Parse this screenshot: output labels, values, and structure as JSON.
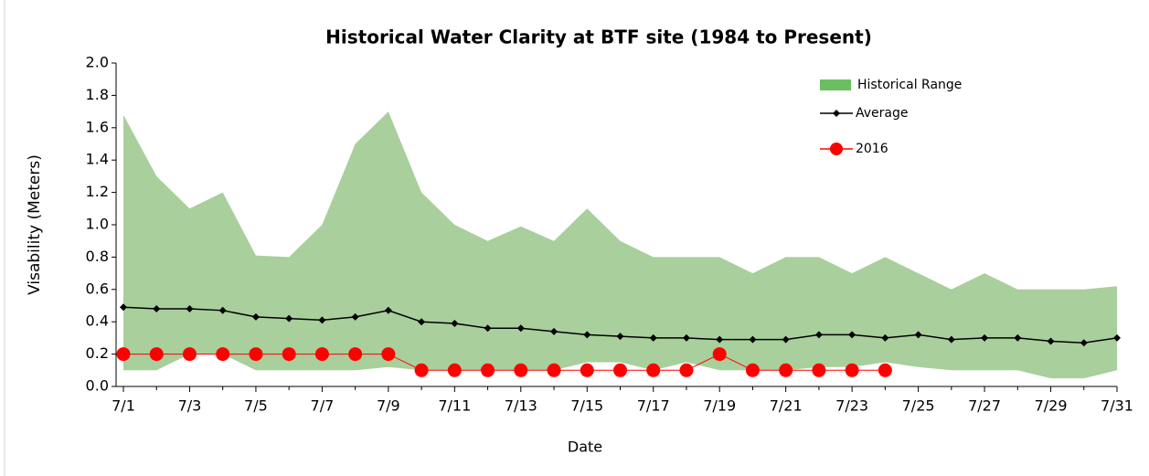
{
  "chart_data": {
    "type": "range-line",
    "title": "Historical Water Clarity at BTF site (1984 to Present)",
    "x_label": "Date",
    "y_label": "Visability  (Meters)",
    "categories": [
      "7/1",
      null,
      "7/3",
      null,
      "7/5",
      null,
      "7/7",
      null,
      "7/9",
      null,
      "7/11",
      null,
      "7/13",
      null,
      "7/15",
      null,
      "7/17",
      null,
      "7/19",
      null,
      "7/21",
      null,
      "7/23",
      null,
      "7/25",
      null,
      "7/27",
      null,
      "7/29",
      null,
      "7/31"
    ],
    "ylim": [
      0,
      2
    ],
    "yticks": [
      {
        "value": 0,
        "label": "0.0"
      },
      0.2,
      0.4,
      0.6,
      0.8,
      {
        "value": 1,
        "label": "1.0"
      },
      1.2,
      1.4,
      1.6,
      1.8,
      {
        "value": 2,
        "label": "2.0"
      }
    ],
    "range": {
      "name": "Historical Range",
      "color": "#a9cf9c",
      "legend_color": "#6abf62",
      "low": [
        0.1,
        0.1,
        0.2,
        0.2,
        0.1,
        0.1,
        0.1,
        0.1,
        0.12,
        0.1,
        0.1,
        0.1,
        0.1,
        0.1,
        0.15,
        0.15,
        0.1,
        0.15,
        0.1,
        0.1,
        0.1,
        0.12,
        0.12,
        0.15,
        0.12,
        0.1,
        0.1,
        0.1,
        0.05,
        0.05,
        0.1
      ],
      "high": [
        1.68,
        1.3,
        1.1,
        1.2,
        0.81,
        0.8,
        1.0,
        1.5,
        1.7,
        1.2,
        1.0,
        0.9,
        0.99,
        0.9,
        1.1,
        0.9,
        0.8,
        0.8,
        0.8,
        0.7,
        0.8,
        0.8,
        0.7,
        0.8,
        0.7,
        0.6,
        0.7,
        0.6,
        0.6,
        0.6,
        0.62
      ]
    },
    "series": [
      {
        "name": "Average",
        "color": "#000000",
        "marker": "diamond",
        "values": [
          0.49,
          0.48,
          0.48,
          0.47,
          0.43,
          0.42,
          0.41,
          0.43,
          0.47,
          0.4,
          0.39,
          0.36,
          0.36,
          0.34,
          0.32,
          0.31,
          0.3,
          0.3,
          0.29,
          0.29,
          0.29,
          0.32,
          0.32,
          0.3,
          0.32,
          0.29,
          0.3,
          0.3,
          0.28,
          0.27,
          0.3
        ]
      },
      {
        "name": "2016",
        "color": "#ff0000",
        "marker": "circle",
        "values": [
          0.2,
          0.2,
          0.2,
          0.2,
          0.2,
          0.2,
          0.2,
          0.2,
          0.2,
          0.1,
          0.1,
          0.1,
          0.1,
          0.1,
          0.1,
          0.1,
          0.1,
          0.1,
          0.2,
          0.1,
          0.1,
          0.1,
          0.1,
          0.1,
          null,
          null,
          null,
          null,
          null,
          null,
          null
        ]
      }
    ]
  }
}
